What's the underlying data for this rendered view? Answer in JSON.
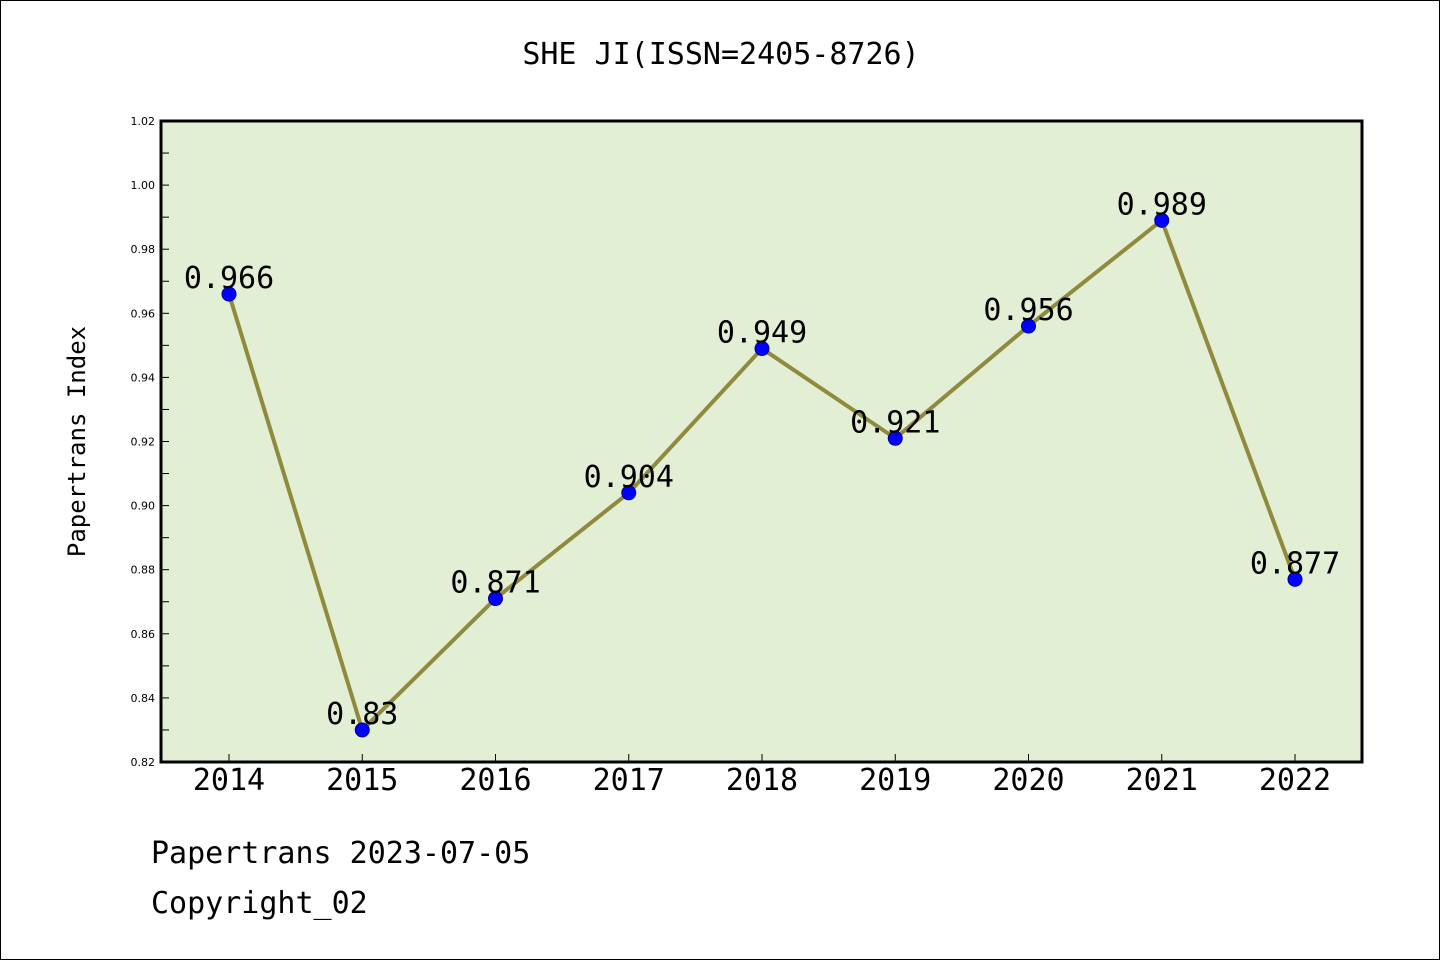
{
  "chart_data": {
    "type": "line",
    "title": "SHE JI(ISSN=2405-8726)",
    "xlabel": "",
    "ylabel": "Papertrans Index",
    "categories": [
      "2014",
      "2015",
      "2016",
      "2017",
      "2018",
      "2019",
      "2020",
      "2021",
      "2022"
    ],
    "series": [
      {
        "values": [
          0.966,
          0.83,
          0.871,
          0.904,
          0.949,
          0.921,
          0.956,
          0.989,
          0.877
        ],
        "labels": [
          "0.966",
          "0.83",
          "0.871",
          "0.904",
          "0.949",
          "0.921",
          "0.956",
          "0.989",
          "0.877"
        ]
      }
    ],
    "ylim": [
      0.82,
      1.02
    ],
    "yticks": [
      0.82,
      0.84,
      0.86,
      0.88,
      0.9,
      0.92,
      0.94,
      0.96,
      0.98,
      1.0,
      1.02
    ],
    "ytick_labels": [
      "0.82",
      "0.84",
      "0.86",
      "0.88",
      "0.90",
      "0.92",
      "0.94",
      "0.96",
      "0.98",
      "1.00",
      "1.02"
    ],
    "grid": false,
    "legend": "none",
    "colors": {
      "plot_background": "#e2efd5",
      "line": "#8f8a3c",
      "marker": "#0000ff"
    }
  },
  "footer": {
    "line1": "Papertrans 2023-07-05",
    "line2": "Copyright_02"
  }
}
